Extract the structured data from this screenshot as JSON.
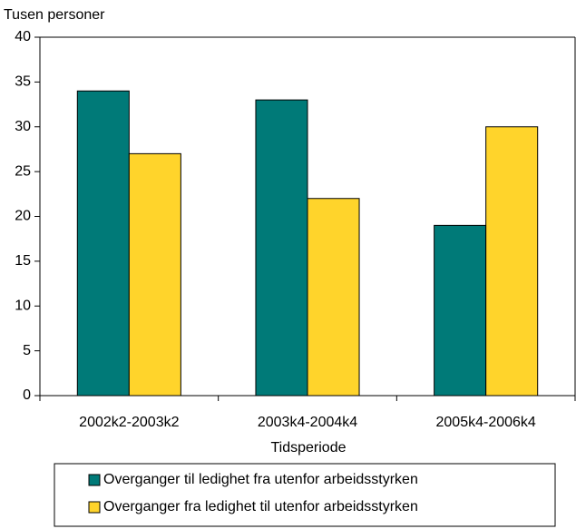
{
  "chart_data": {
    "type": "bar",
    "ylabel": "Tusen personer",
    "xlabel": "Tidsperiode",
    "categories": [
      "2002k2-2003k2",
      "2003k4-2004k4",
      "2005k4-2006k4"
    ],
    "series": [
      {
        "name": "Overganger til ledighet fra utenfor arbeidsstyrken",
        "color": "#007a78",
        "values": [
          34,
          33,
          19
        ]
      },
      {
        "name": "Overganger fra ledighet til utenfor arbeidsstyrken",
        "color": "#ffd42b",
        "values": [
          27,
          22,
          30
        ]
      }
    ],
    "ylim": [
      0,
      40
    ],
    "yticks": [
      0,
      5,
      10,
      15,
      20,
      25,
      30,
      35,
      40
    ],
    "grid": false,
    "legend": "bottom"
  }
}
